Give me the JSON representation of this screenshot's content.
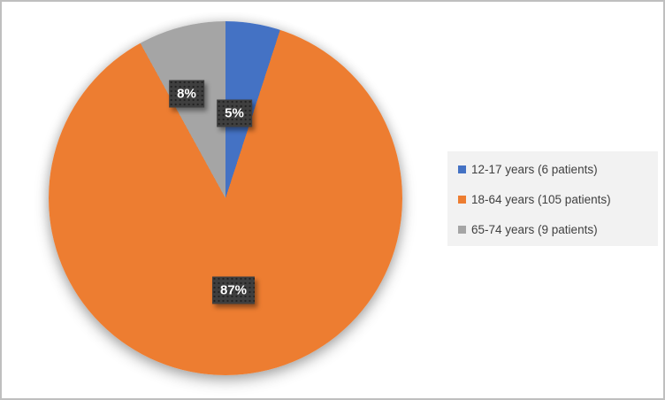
{
  "window": {
    "border_color": "#bfbfbf",
    "background": "#ffffff"
  },
  "chart_data": {
    "type": "pie",
    "title": "",
    "categories": [
      "12-17 years (6 patients)",
      "18-64 years (105 patients)",
      "65-74 years (9 patients)"
    ],
    "values": [
      5,
      87,
      8
    ],
    "unit": "%",
    "start_angle_deg": 0,
    "direction": "clockwise",
    "legend_position": "right",
    "slices": [
      {
        "label": "12-17 years (6 patients)",
        "percent": 5,
        "patients": 6,
        "percent_label": "5%",
        "color": "#4472c4"
      },
      {
        "label": "18-64 years (105 patients)",
        "percent": 87,
        "patients": 105,
        "percent_label": "87%",
        "color": "#ed7d31"
      },
      {
        "label": "65-74 years (9 patients)",
        "percent": 8,
        "patients": 9,
        "percent_label": "8%",
        "color": "#a5a5a5"
      }
    ],
    "label_style": {
      "box_bg": "#3f3f3f",
      "text_color": "#ffffff"
    }
  },
  "legend": {
    "background": "#f2f2f2",
    "items": [
      {
        "label": "12-17 years (6 patients)",
        "color": "#4472c4"
      },
      {
        "label": "18-64 years (105 patients)",
        "color": "#ed7d31"
      },
      {
        "label": "65-74 years (9 patients)",
        "color": "#a5a5a5"
      }
    ]
  }
}
